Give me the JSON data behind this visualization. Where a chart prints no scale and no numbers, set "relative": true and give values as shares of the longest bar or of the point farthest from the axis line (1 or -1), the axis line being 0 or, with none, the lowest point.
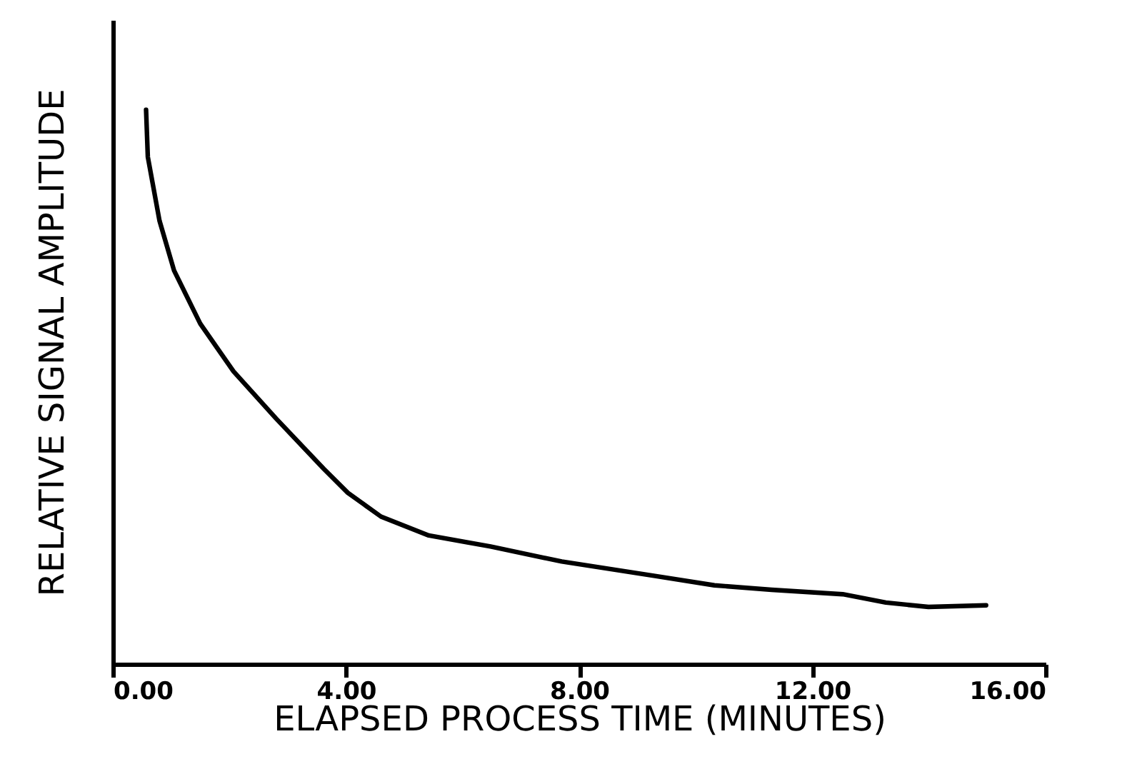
{
  "chart_data": {
    "type": "line",
    "xlabel": "ELAPSED PROCESS TIME (MINUTES)",
    "ylabel": "RELATIVE SIGNAL AMPLITUDE",
    "relative": true,
    "xlim": [
      0,
      16
    ],
    "xticks": [
      {
        "value": 0,
        "label": "0.00"
      },
      {
        "value": 4,
        "label": "4.00"
      },
      {
        "value": 8,
        "label": "8.00"
      },
      {
        "value": 12,
        "label": "12.00"
      },
      {
        "value": 16,
        "label": "16.00"
      }
    ],
    "x": [
      0.57,
      0.6,
      0.8,
      1.05,
      1.5,
      2.07,
      2.8,
      3.62,
      4.03,
      4.6,
      5.42,
      6.48,
      7.7,
      9.3,
      10.32,
      11.3,
      12.52,
      13.26,
      13.99,
      14.98
    ],
    "series": [
      {
        "color": "#000000",
        "values": [
          1,
          0.915,
          0.8,
          0.71,
          0.614,
          0.528,
          0.443,
          0.352,
          0.309,
          0.266,
          0.232,
          0.212,
          0.185,
          0.159,
          0.142,
          0.134,
          0.126,
          0.111,
          0.103,
          0.106
        ]
      }
    ],
    "line_style": "solid"
  }
}
